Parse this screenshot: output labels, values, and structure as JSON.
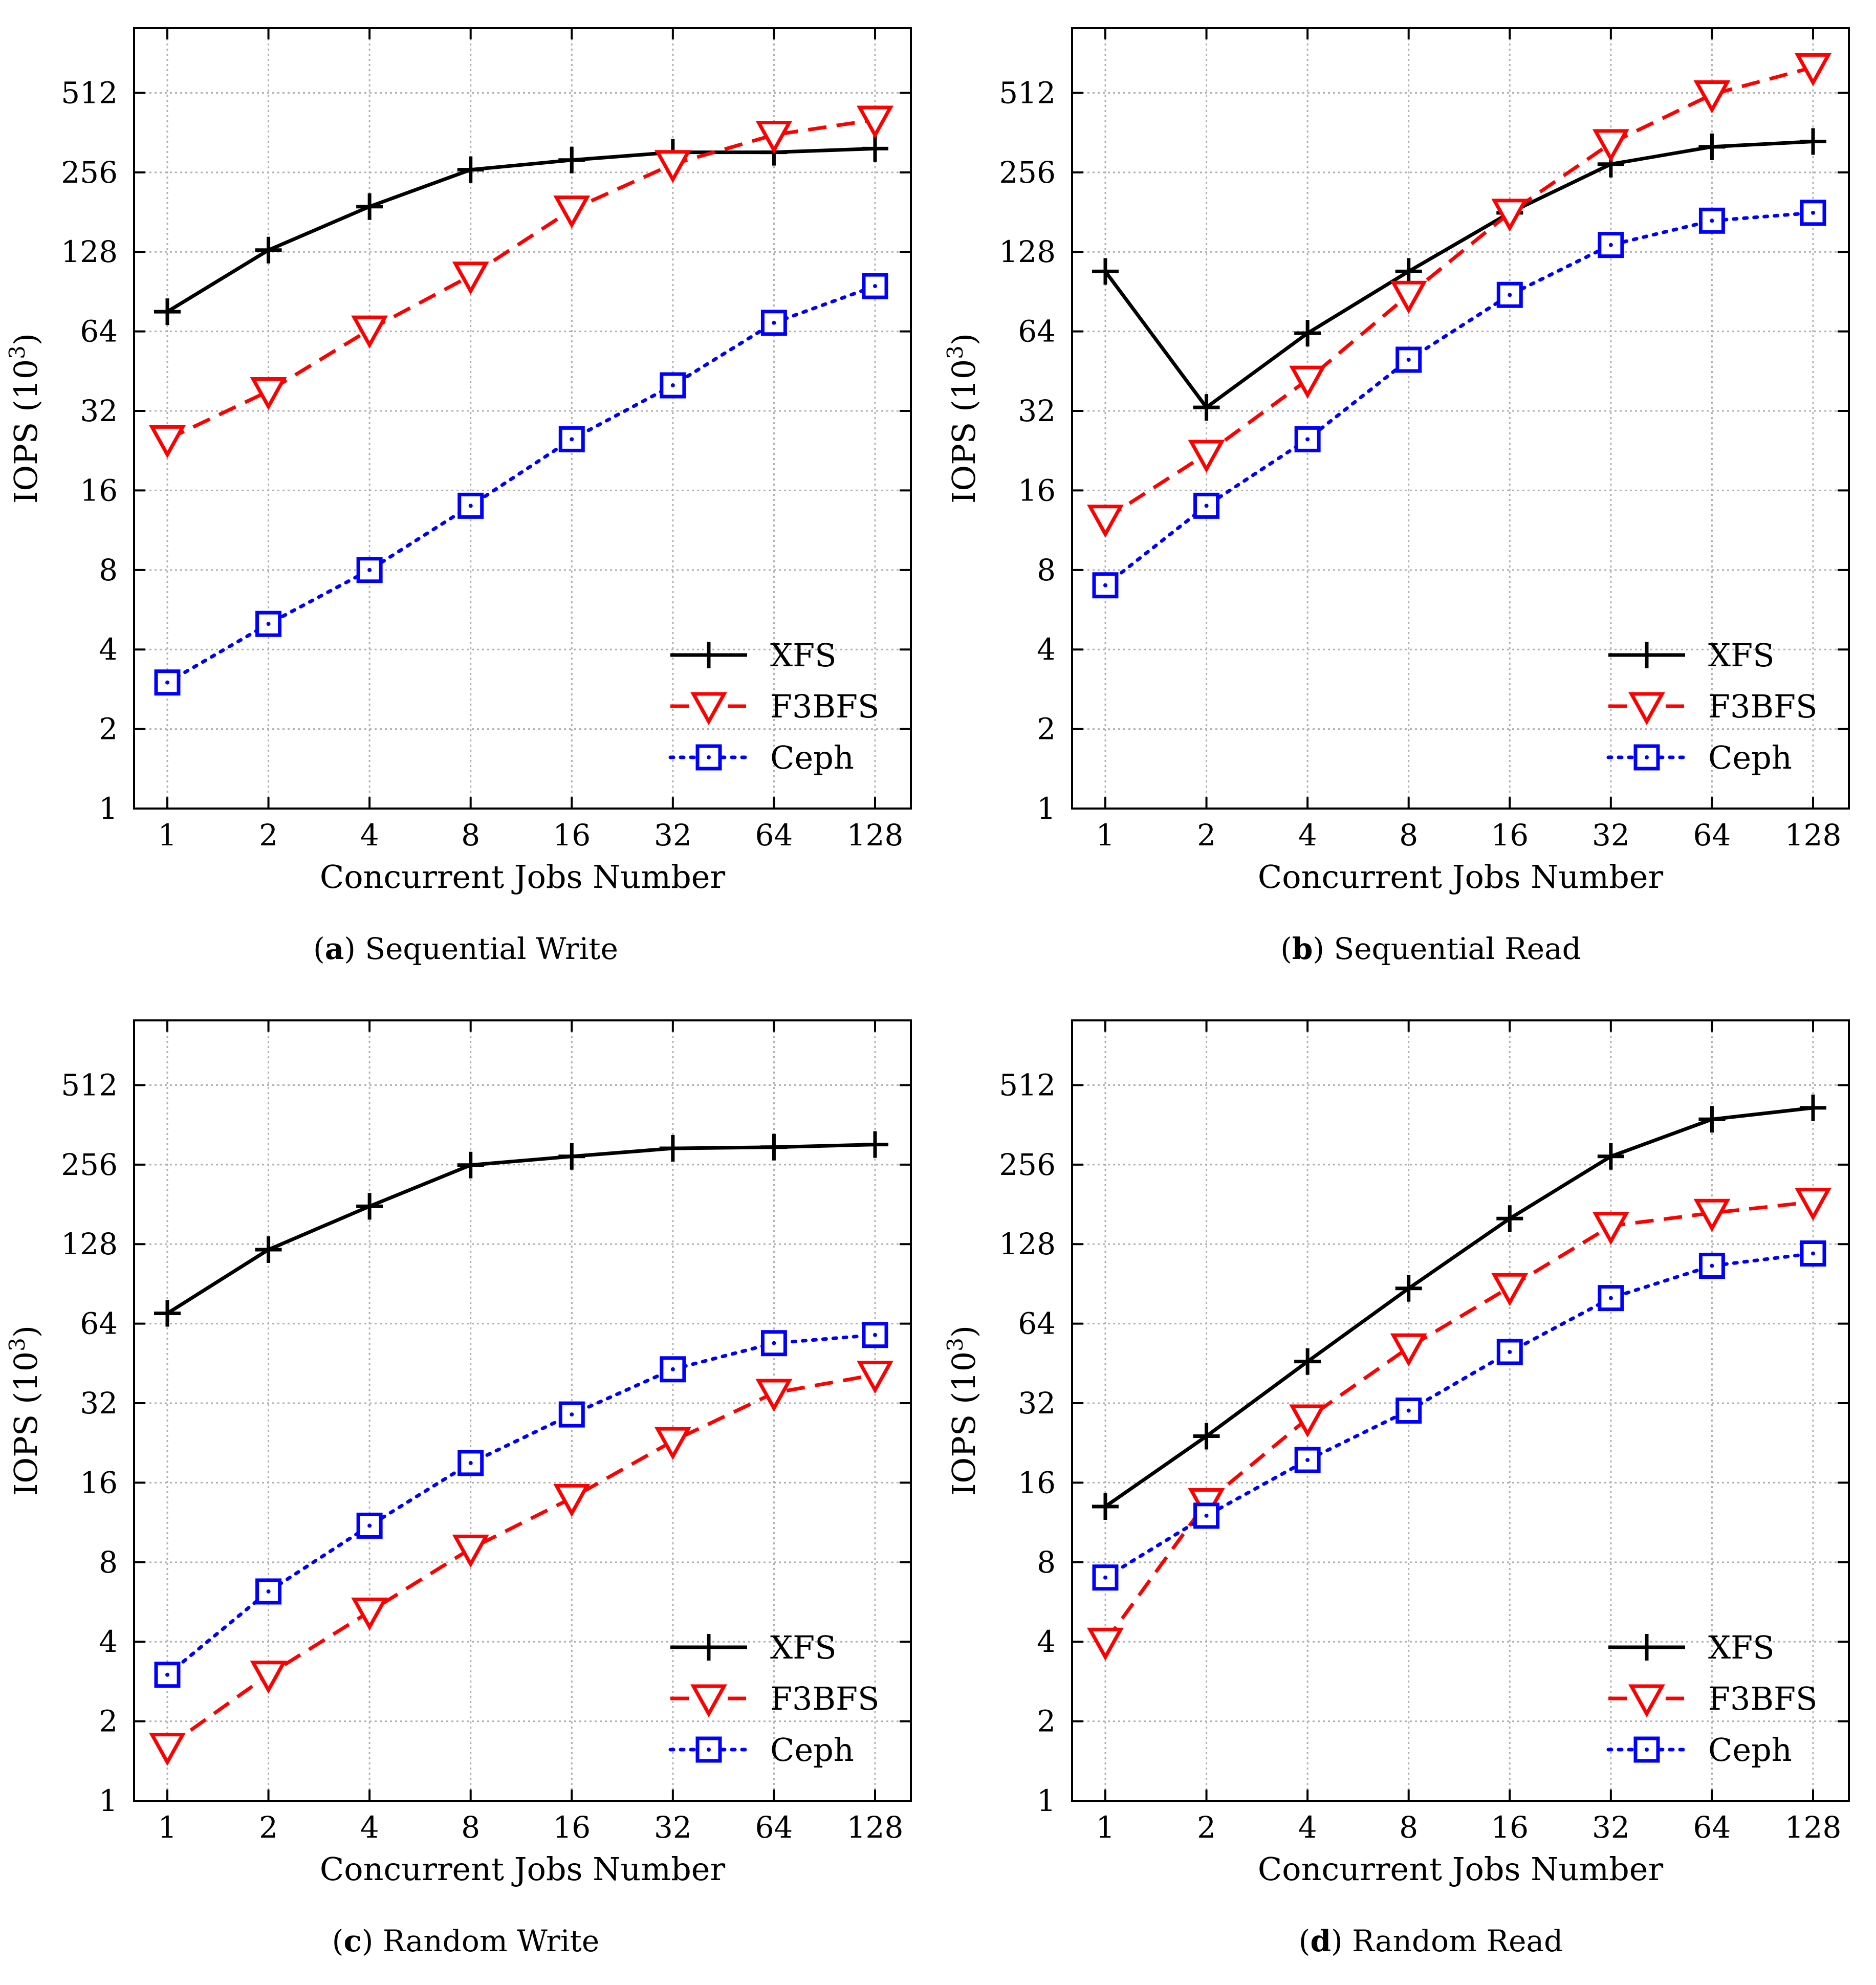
{
  "colors": {
    "XFS": "#000000",
    "F3BFS": "#ff0000",
    "Ceph": "#0000ff",
    "grid": "#b0b0b0"
  },
  "chart_data": [
    {
      "id": "a",
      "type": "line",
      "caption_letter": "a",
      "caption_text": "Sequential Write",
      "xlabel": "Concurrent Jobs Number",
      "ylabel_main": "IOPS (10",
      "ylabel_exp": "3",
      "ylabel_close": ")",
      "x": [
        1,
        2,
        4,
        8,
        16,
        32,
        64,
        128
      ],
      "xticks": [
        "1",
        "2",
        "4",
        "8",
        "16",
        "32",
        "64",
        "128"
      ],
      "yticks": [
        "1",
        "2",
        "4",
        "8",
        "16",
        "32",
        "64",
        "128",
        "256",
        "512"
      ],
      "yscale": "log2",
      "ylim": [
        1,
        900
      ],
      "legend": [
        "XFS",
        "F3BFS",
        "Ceph"
      ],
      "series": [
        {
          "name": "XFS",
          "marker": "plus",
          "dash": "solid",
          "values": [
            76,
            130,
            190,
            262,
            285,
            305,
            305,
            315
          ]
        },
        {
          "name": "F3BFS",
          "marker": "triangle-down",
          "dash": "dashed",
          "values": [
            25,
            38,
            65,
            104,
            185,
            275,
            355,
            405
          ]
        },
        {
          "name": "Ceph",
          "marker": "square",
          "dash": "dotted",
          "values": [
            3.0,
            5.0,
            8.0,
            14.0,
            25.0,
            40.0,
            69.0,
            95.0
          ]
        }
      ]
    },
    {
      "id": "b",
      "type": "line",
      "caption_letter": "b",
      "caption_text": "Sequential Read",
      "xlabel": "Concurrent Jobs Number",
      "ylabel_main": "IOPS (10",
      "ylabel_exp": "3",
      "ylabel_close": ")",
      "x": [
        1,
        2,
        4,
        8,
        16,
        32,
        64,
        128
      ],
      "xticks": [
        "1",
        "2",
        "4",
        "8",
        "16",
        "32",
        "64",
        "128"
      ],
      "yticks": [
        "1",
        "2",
        "4",
        "8",
        "16",
        "32",
        "64",
        "128",
        "256",
        "512"
      ],
      "yscale": "log2",
      "ylim": [
        1,
        900
      ],
      "legend": [
        "XFS",
        "F3BFS",
        "Ceph"
      ],
      "series": [
        {
          "name": "XFS",
          "marker": "plus",
          "dash": "solid",
          "values": [
            108,
            33,
            63,
            108,
            180,
            275,
            320,
            335
          ]
        },
        {
          "name": "F3BFS",
          "marker": "triangle-down",
          "dash": "dashed",
          "values": [
            12.5,
            22,
            42,
            88,
            180,
            330,
            505,
            640
          ]
        },
        {
          "name": "Ceph",
          "marker": "square",
          "dash": "dotted",
          "values": [
            7.0,
            14.0,
            25.0,
            50.0,
            88.0,
            136.0,
            168.0,
            180.0
          ]
        }
      ]
    },
    {
      "id": "c",
      "type": "line",
      "caption_letter": "c",
      "caption_text": "Random Write",
      "xlabel": "Concurrent Jobs Number",
      "ylabel_main": "IOPS (10",
      "ylabel_exp": "3",
      "ylabel_close": ")",
      "x": [
        1,
        2,
        4,
        8,
        16,
        32,
        64,
        128
      ],
      "xticks": [
        "1",
        "2",
        "4",
        "8",
        "16",
        "32",
        "64",
        "128"
      ],
      "yticks": [
        "1",
        "2",
        "4",
        "8",
        "16",
        "32",
        "64",
        "128",
        "256",
        "512"
      ],
      "yscale": "log2",
      "ylim": [
        1,
        900
      ],
      "legend": [
        "XFS",
        "F3BFS",
        "Ceph"
      ],
      "series": [
        {
          "name": "XFS",
          "marker": "plus",
          "dash": "solid",
          "values": [
            70,
            122,
            178,
            255,
            275,
            295,
            298,
            305
          ]
        },
        {
          "name": "F3BFS",
          "marker": "triangle-down",
          "dash": "dashed",
          "values": [
            1.6,
            3.0,
            5.2,
            9.0,
            14.0,
            23.0,
            35.0,
            41.0
          ]
        },
        {
          "name": "Ceph",
          "marker": "square",
          "dash": "dotted",
          "values": [
            3.0,
            6.2,
            11.0,
            19.0,
            29.0,
            43.0,
            54.0,
            58.0
          ]
        }
      ]
    },
    {
      "id": "d",
      "type": "line",
      "caption_letter": "d",
      "caption_text": "Random Read",
      "xlabel": "Concurrent Jobs Number",
      "ylabel_main": "IOPS (10",
      "ylabel_exp": "3",
      "ylabel_close": ")",
      "x": [
        1,
        2,
        4,
        8,
        16,
        32,
        64,
        128
      ],
      "xticks": [
        "1",
        "2",
        "4",
        "8",
        "16",
        "32",
        "64",
        "128"
      ],
      "yticks": [
        "1",
        "2",
        "4",
        "8",
        "16",
        "32",
        "64",
        "128",
        "256",
        "512"
      ],
      "yscale": "log2",
      "ylim": [
        1,
        900
      ],
      "legend": [
        "XFS",
        "F3BFS",
        "Ceph"
      ],
      "series": [
        {
          "name": "XFS",
          "marker": "plus",
          "dash": "solid",
          "values": [
            13,
            24,
            46,
            87,
            160,
            275,
            380,
            420
          ]
        },
        {
          "name": "F3BFS",
          "marker": "triangle-down",
          "dash": "dashed",
          "values": [
            4.0,
            13.5,
            28,
            52,
            88,
            150,
            168,
            185
          ]
        },
        {
          "name": "Ceph",
          "marker": "square",
          "dash": "dotted",
          "values": [
            7.0,
            12.0,
            19.5,
            30.0,
            50.0,
            80.0,
            106.0,
            118.0
          ]
        }
      ]
    }
  ]
}
